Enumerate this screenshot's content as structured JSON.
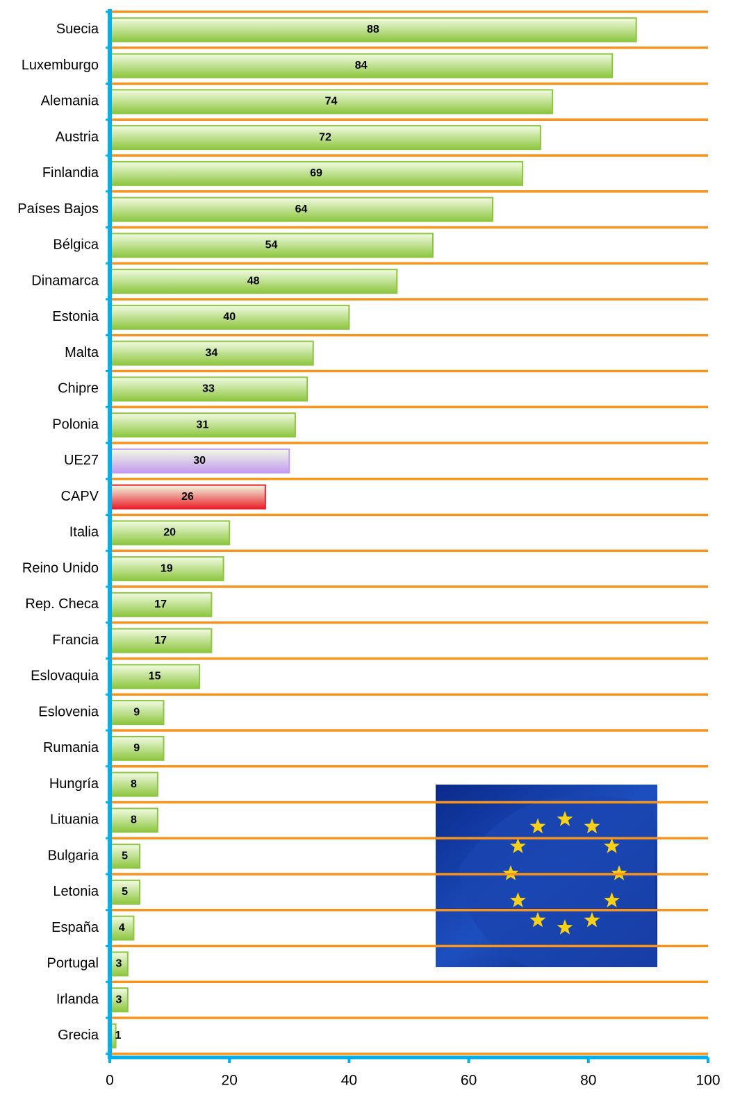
{
  "chart_data": {
    "type": "bar",
    "orientation": "horizontal",
    "categories": [
      "Suecia",
      "Luxemburgo",
      "Alemania",
      "Austria",
      "Finlandia",
      "Países Bajos",
      "Bélgica",
      "Dinamarca",
      "Estonia",
      "Malta",
      "Chipre",
      "Polonia",
      "UE27",
      "CAPV",
      "Italia",
      "Reino Unido",
      "Rep. Checa",
      "Francia",
      "Eslovaquia",
      "Eslovenia",
      "Rumania",
      "Hungría",
      "Lituania",
      "Bulgaria",
      "Letonia",
      "España",
      "Portugal",
      "Irlanda",
      "Grecia"
    ],
    "values": [
      88,
      84,
      74,
      72,
      69,
      64,
      54,
      48,
      40,
      34,
      33,
      31,
      30,
      26,
      20,
      19,
      17,
      17,
      15,
      9,
      9,
      8,
      8,
      5,
      5,
      4,
      3,
      3,
      1
    ],
    "colors": [
      "#8dc63f",
      "#8dc63f",
      "#8dc63f",
      "#8dc63f",
      "#8dc63f",
      "#8dc63f",
      "#8dc63f",
      "#8dc63f",
      "#8dc63f",
      "#8dc63f",
      "#8dc63f",
      "#8dc63f",
      "#c39bf0",
      "#e8202a",
      "#8dc63f",
      "#8dc63f",
      "#8dc63f",
      "#8dc63f",
      "#8dc63f",
      "#8dc63f",
      "#8dc63f",
      "#8dc63f",
      "#8dc63f",
      "#8dc63f",
      "#8dc63f",
      "#8dc63f",
      "#8dc63f",
      "#8dc63f",
      "#8dc63f"
    ],
    "xlim": [
      0,
      100
    ],
    "xticks": [
      0,
      20,
      40,
      60,
      80,
      100
    ]
  }
}
